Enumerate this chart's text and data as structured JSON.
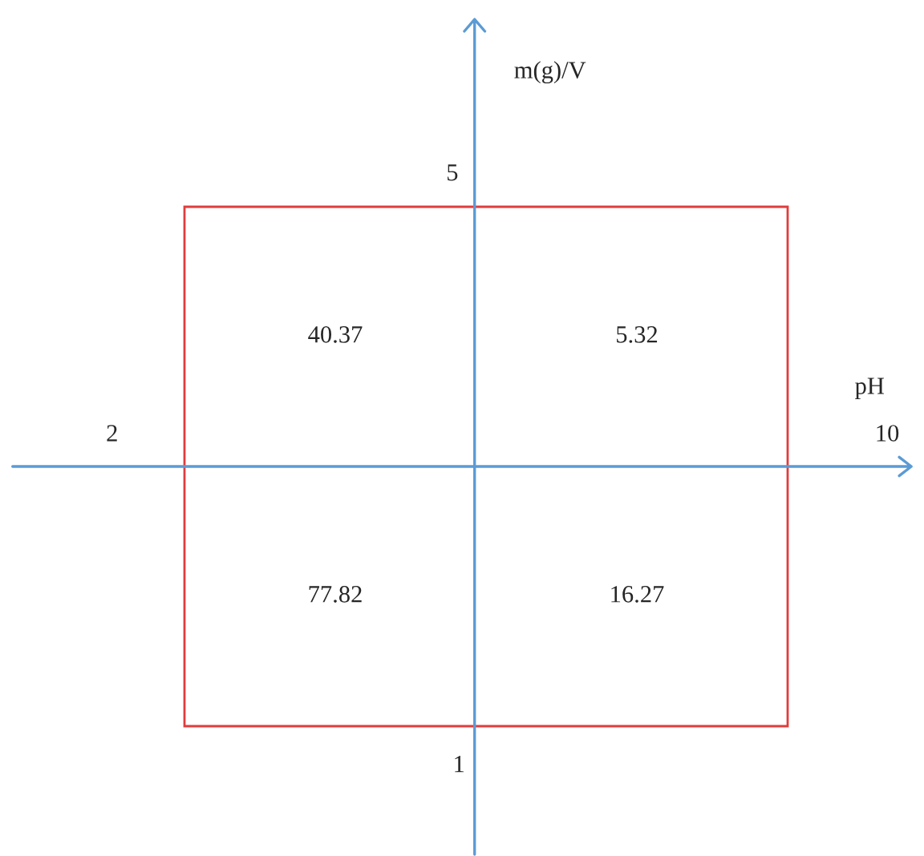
{
  "chart_data": {
    "type": "heatmap",
    "xlabel": "pH",
    "ylabel": "m(g)/V",
    "categories": [
      "2",
      "10"
    ],
    "y_categories": [
      "5",
      "1"
    ],
    "cells": [
      [
        40.37,
        5.32
      ],
      [
        77.82,
        16.27
      ]
    ],
    "data_labels": true
  }
}
